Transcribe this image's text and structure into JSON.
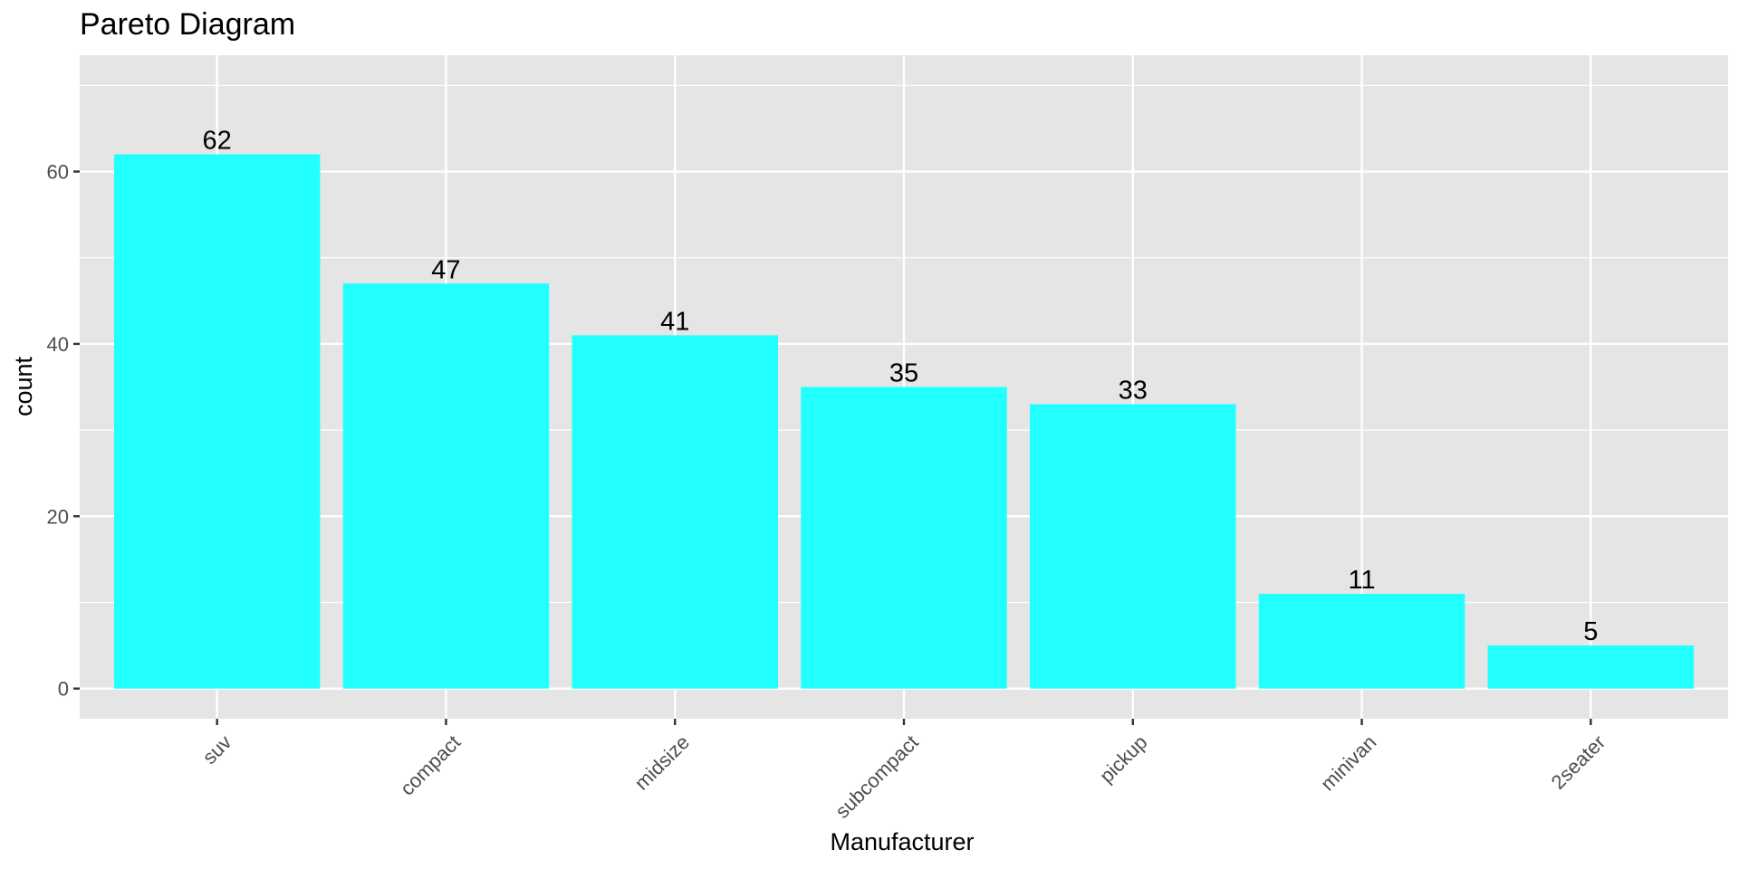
{
  "chart_data": {
    "type": "bar",
    "title": "Pareto Diagram",
    "xlabel": "Manufacturer",
    "ylabel": "count",
    "categories": [
      "suv",
      "compact",
      "midsize",
      "subcompact",
      "pickup",
      "minivan",
      "2seater"
    ],
    "values": [
      62,
      47,
      41,
      35,
      33,
      11,
      5
    ],
    "data_labels": [
      "62",
      "47",
      "41",
      "35",
      "33",
      "11",
      "5"
    ],
    "y_ticks": [
      0,
      20,
      40,
      60
    ],
    "y_tick_labels": [
      "0",
      "20",
      "40",
      "60"
    ],
    "ylim": [
      -3.5,
      73.5
    ],
    "grid": true,
    "legend": "none",
    "colors": {
      "bar_fill": "#22ffff",
      "panel_background": "#e5e5e5",
      "grid_line": "#ffffff",
      "tick_label": "#4d4d4d",
      "text": "#000000"
    }
  }
}
